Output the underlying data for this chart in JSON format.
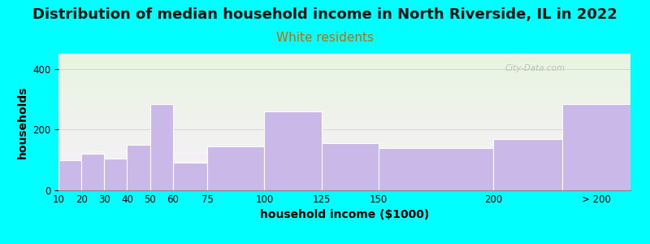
{
  "title": "Distribution of median household income in North Riverside, IL in 2022",
  "subtitle": "White residents",
  "xlabel": "household income ($1000)",
  "ylabel": "households",
  "categories": [
    "10",
    "20",
    "30",
    "40",
    "50",
    "60",
    "75",
    "100",
    "125",
    "150",
    "200",
    "> 200"
  ],
  "values": [
    100,
    120,
    105,
    150,
    285,
    90,
    145,
    260,
    155,
    140,
    170,
    285
  ],
  "bar_color": "#c9b8e8",
  "bar_edge_color": "#ffffff",
  "background_color": "#00ffff",
  "title_fontsize": 13,
  "subtitle_fontsize": 11,
  "subtitle_color": "#cc6600",
  "axis_label_fontsize": 10,
  "tick_fontsize": 8.5,
  "ylim": [
    0,
    450
  ],
  "yticks": [
    0,
    200,
    400
  ],
  "watermark": "City-Data.com",
  "left_edges": [
    10,
    20,
    30,
    40,
    50,
    60,
    75,
    100,
    125,
    150,
    200,
    230
  ],
  "right_edges": [
    20,
    30,
    40,
    50,
    60,
    75,
    100,
    125,
    150,
    200,
    230,
    260
  ]
}
